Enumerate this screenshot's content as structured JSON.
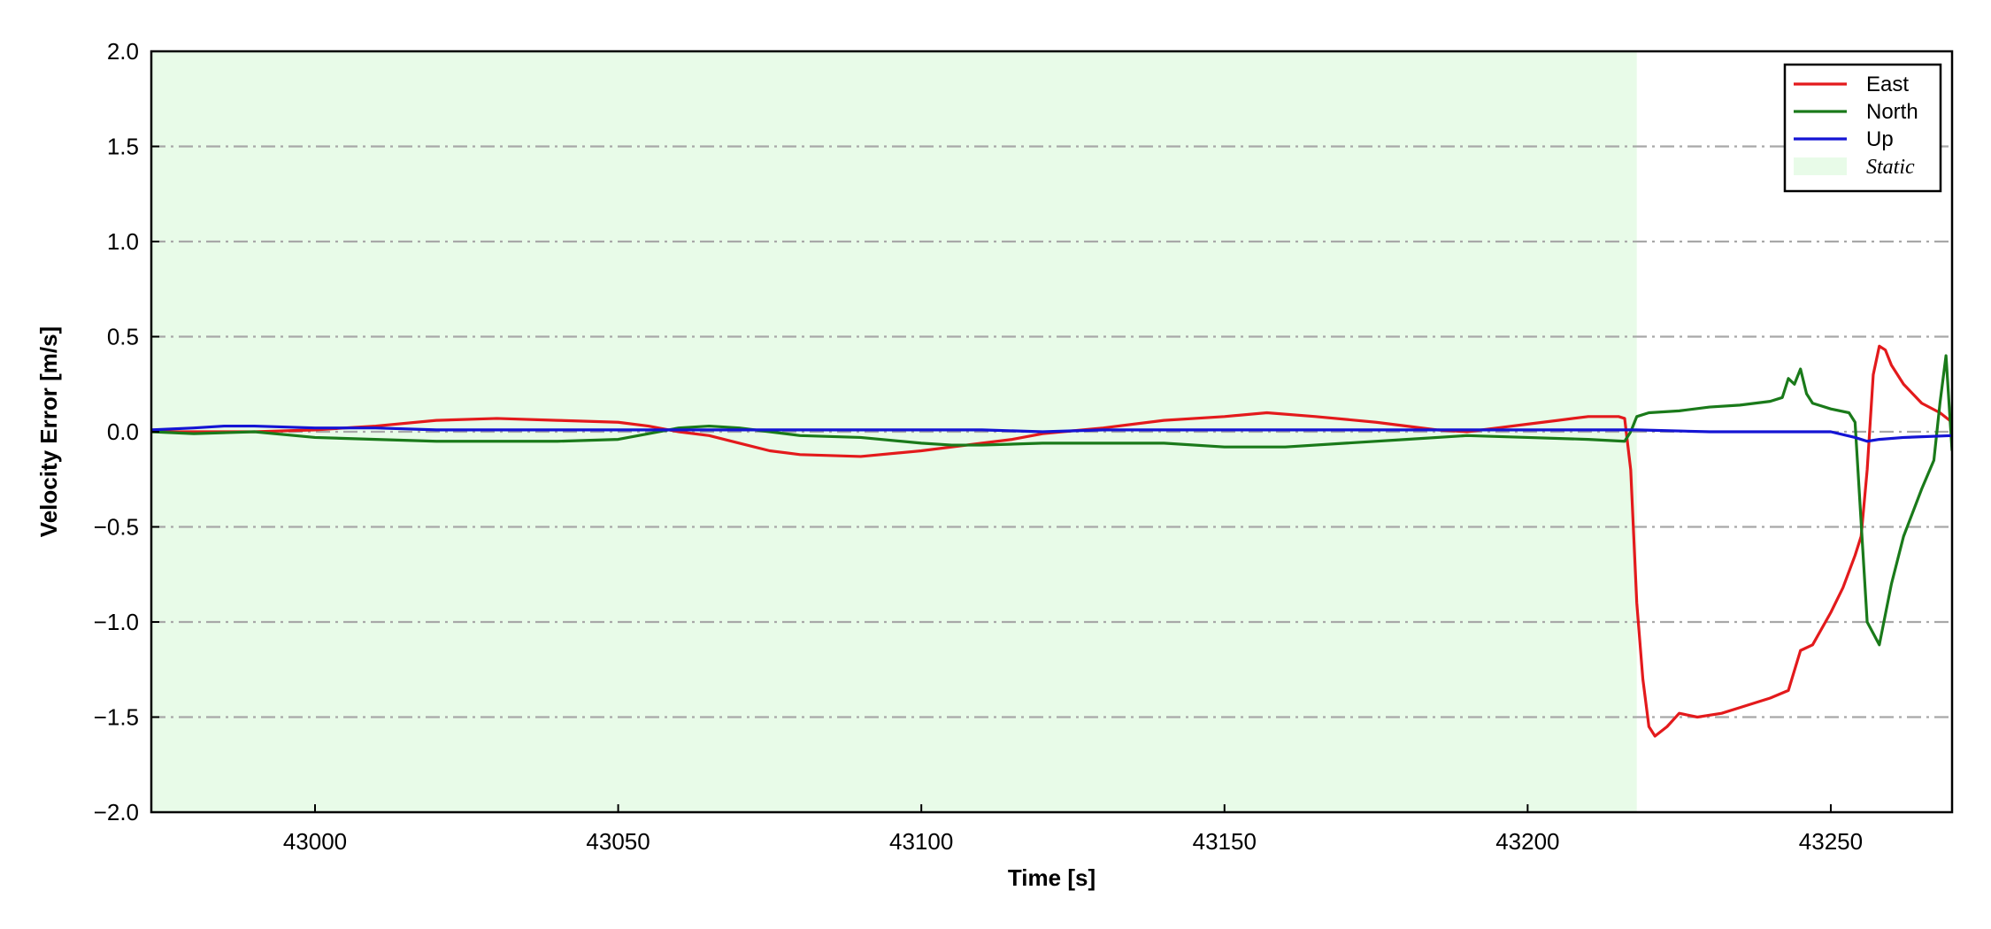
{
  "chart_data": {
    "type": "line",
    "title": "",
    "xlabel": "Time [s]",
    "ylabel": "Velocity Error [m/s]",
    "xlim": [
      42973,
      43270
    ],
    "ylim": [
      -2.0,
      2.0
    ],
    "x_ticks": [
      43000,
      43050,
      43100,
      43150,
      43200,
      43250
    ],
    "y_ticks": [
      -2.0,
      -1.5,
      -1.0,
      -0.5,
      0.0,
      0.5,
      1.0,
      1.5,
      2.0
    ],
    "x_tick_labels": [
      "43000",
      "43050",
      "43100",
      "43150",
      "43200",
      "43250"
    ],
    "y_tick_labels": [
      "−2.0",
      "−1.5",
      "−1.0",
      "−0.5",
      "0.0",
      "0.5",
      "1.0",
      "1.5",
      "2.0"
    ],
    "grid": "horizontal dash-dot",
    "legend_placement": "top-right",
    "static_region": {
      "label": "Static",
      "x_start": 42973,
      "x_end": 43218,
      "color": "#e8fbe8"
    },
    "series": [
      {
        "name": "East",
        "color": "#e31a1c",
        "points": [
          [
            42973,
            0.0
          ],
          [
            42980,
            0.0
          ],
          [
            42990,
            0.0
          ],
          [
            43000,
            0.01
          ],
          [
            43010,
            0.03
          ],
          [
            43020,
            0.06
          ],
          [
            43030,
            0.07
          ],
          [
            43040,
            0.06
          ],
          [
            43050,
            0.05
          ],
          [
            43055,
            0.03
          ],
          [
            43060,
            0.0
          ],
          [
            43065,
            -0.02
          ],
          [
            43070,
            -0.06
          ],
          [
            43075,
            -0.1
          ],
          [
            43080,
            -0.12
          ],
          [
            43090,
            -0.13
          ],
          [
            43100,
            -0.1
          ],
          [
            43110,
            -0.06
          ],
          [
            43115,
            -0.04
          ],
          [
            43120,
            -0.01
          ],
          [
            43130,
            0.02
          ],
          [
            43140,
            0.06
          ],
          [
            43150,
            0.08
          ],
          [
            43157,
            0.1
          ],
          [
            43165,
            0.08
          ],
          [
            43175,
            0.05
          ],
          [
            43185,
            0.01
          ],
          [
            43190,
            0.0
          ],
          [
            43195,
            0.02
          ],
          [
            43200,
            0.04
          ],
          [
            43205,
            0.06
          ],
          [
            43210,
            0.08
          ],
          [
            43215,
            0.08
          ],
          [
            43216,
            0.07
          ],
          [
            43217,
            -0.2
          ],
          [
            43218,
            -0.9
          ],
          [
            43219,
            -1.3
          ],
          [
            43220,
            -1.55
          ],
          [
            43221,
            -1.6
          ],
          [
            43223,
            -1.55
          ],
          [
            43225,
            -1.48
          ],
          [
            43228,
            -1.5
          ],
          [
            43232,
            -1.48
          ],
          [
            43235,
            -1.45
          ],
          [
            43240,
            -1.4
          ],
          [
            43243,
            -1.36
          ],
          [
            43245,
            -1.15
          ],
          [
            43247,
            -1.12
          ],
          [
            43250,
            -0.95
          ],
          [
            43252,
            -0.82
          ],
          [
            43254,
            -0.65
          ],
          [
            43255,
            -0.55
          ],
          [
            43256,
            -0.2
          ],
          [
            43257,
            0.3
          ],
          [
            43258,
            0.45
          ],
          [
            43259,
            0.43
          ],
          [
            43260,
            0.35
          ],
          [
            43262,
            0.25
          ],
          [
            43265,
            0.15
          ],
          [
            43268,
            0.1
          ],
          [
            43270,
            0.05
          ]
        ]
      },
      {
        "name": "North",
        "color": "#1a7a1a",
        "points": [
          [
            42973,
            0.0
          ],
          [
            42980,
            -0.01
          ],
          [
            42990,
            0.0
          ],
          [
            43000,
            -0.03
          ],
          [
            43010,
            -0.04
          ],
          [
            43020,
            -0.05
          ],
          [
            43030,
            -0.05
          ],
          [
            43040,
            -0.05
          ],
          [
            43050,
            -0.04
          ],
          [
            43055,
            -0.01
          ],
          [
            43060,
            0.02
          ],
          [
            43065,
            0.03
          ],
          [
            43070,
            0.02
          ],
          [
            43075,
            0.0
          ],
          [
            43080,
            -0.02
          ],
          [
            43090,
            -0.03
          ],
          [
            43100,
            -0.06
          ],
          [
            43105,
            -0.07
          ],
          [
            43110,
            -0.07
          ],
          [
            43120,
            -0.06
          ],
          [
            43130,
            -0.06
          ],
          [
            43140,
            -0.06
          ],
          [
            43150,
            -0.08
          ],
          [
            43160,
            -0.08
          ],
          [
            43170,
            -0.06
          ],
          [
            43180,
            -0.04
          ],
          [
            43190,
            -0.02
          ],
          [
            43200,
            -0.03
          ],
          [
            43210,
            -0.04
          ],
          [
            43216,
            -0.05
          ],
          [
            43217,
            0.0
          ],
          [
            43218,
            0.08
          ],
          [
            43220,
            0.1
          ],
          [
            43225,
            0.11
          ],
          [
            43230,
            0.13
          ],
          [
            43235,
            0.14
          ],
          [
            43240,
            0.16
          ],
          [
            43242,
            0.18
          ],
          [
            43243,
            0.28
          ],
          [
            43244,
            0.25
          ],
          [
            43245,
            0.33
          ],
          [
            43246,
            0.2
          ],
          [
            43247,
            0.15
          ],
          [
            43248,
            0.14
          ],
          [
            43250,
            0.12
          ],
          [
            43253,
            0.1
          ],
          [
            43254,
            0.05
          ],
          [
            43256,
            -1.0
          ],
          [
            43258,
            -1.12
          ],
          [
            43260,
            -0.8
          ],
          [
            43262,
            -0.55
          ],
          [
            43265,
            -0.3
          ],
          [
            43267,
            -0.15
          ],
          [
            43268,
            0.15
          ],
          [
            43269,
            0.4
          ],
          [
            43270,
            -0.1
          ]
        ]
      },
      {
        "name": "Up",
        "color": "#1414d4",
        "points": [
          [
            42973,
            0.01
          ],
          [
            42980,
            0.02
          ],
          [
            42985,
            0.03
          ],
          [
            42990,
            0.03
          ],
          [
            43000,
            0.02
          ],
          [
            43010,
            0.02
          ],
          [
            43020,
            0.01
          ],
          [
            43030,
            0.01
          ],
          [
            43040,
            0.01
          ],
          [
            43050,
            0.01
          ],
          [
            43060,
            0.01
          ],
          [
            43070,
            0.01
          ],
          [
            43080,
            0.01
          ],
          [
            43090,
            0.01
          ],
          [
            43100,
            0.01
          ],
          [
            43110,
            0.01
          ],
          [
            43120,
            0.0
          ],
          [
            43130,
            0.01
          ],
          [
            43140,
            0.01
          ],
          [
            43150,
            0.01
          ],
          [
            43160,
            0.01
          ],
          [
            43170,
            0.01
          ],
          [
            43180,
            0.01
          ],
          [
            43190,
            0.01
          ],
          [
            43200,
            0.01
          ],
          [
            43210,
            0.01
          ],
          [
            43218,
            0.01
          ],
          [
            43230,
            0.0
          ],
          [
            43240,
            0.0
          ],
          [
            43250,
            0.0
          ],
          [
            43254,
            -0.03
          ],
          [
            43256,
            -0.05
          ],
          [
            43258,
            -0.04
          ],
          [
            43262,
            -0.03
          ],
          [
            43270,
            -0.02
          ]
        ]
      }
    ]
  }
}
